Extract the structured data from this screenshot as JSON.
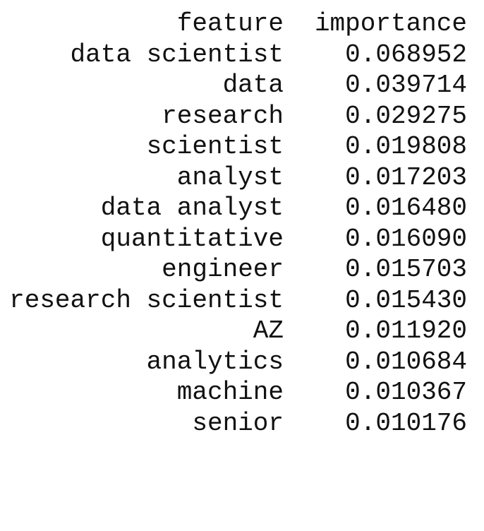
{
  "table": {
    "headers": {
      "feature": "feature",
      "importance": "importance"
    },
    "rows": [
      {
        "feature": "data scientist",
        "importance": "0.068952"
      },
      {
        "feature": "data",
        "importance": "0.039714"
      },
      {
        "feature": "research",
        "importance": "0.029275"
      },
      {
        "feature": "scientist",
        "importance": "0.019808"
      },
      {
        "feature": "analyst",
        "importance": "0.017203"
      },
      {
        "feature": "data analyst",
        "importance": "0.016480"
      },
      {
        "feature": "quantitative",
        "importance": "0.016090"
      },
      {
        "feature": "engineer",
        "importance": "0.015703"
      },
      {
        "feature": "research scientist",
        "importance": "0.015430"
      },
      {
        "feature": "AZ",
        "importance": "0.011920"
      },
      {
        "feature": "analytics",
        "importance": "0.010684"
      },
      {
        "feature": "machine",
        "importance": "0.010367"
      },
      {
        "feature": "senior",
        "importance": "0.010176"
      }
    ]
  }
}
